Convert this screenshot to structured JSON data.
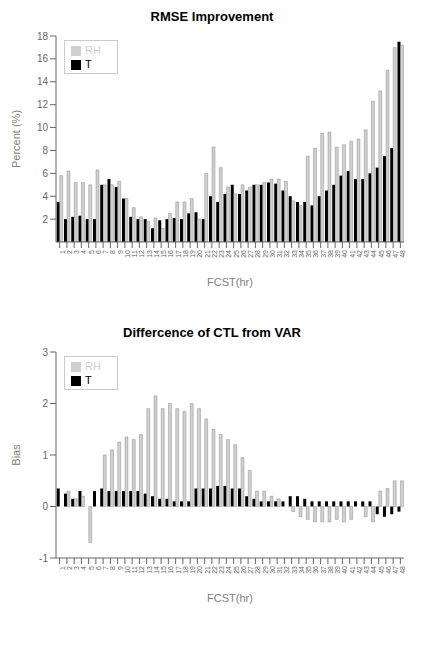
{
  "chart_data": [
    {
      "type": "bar",
      "title": "RMSE Improvement",
      "x_label": "FCST(hr)",
      "y_label": "Percent (%)",
      "categories": [
        "1",
        "2",
        "3",
        "4",
        "5",
        "6",
        "7",
        "8",
        "9",
        "10",
        "11",
        "12",
        "13",
        "14",
        "15",
        "16",
        "17",
        "18",
        "19",
        "20",
        "21",
        "22",
        "23",
        "24",
        "25",
        "26",
        "27",
        "28",
        "29",
        "30",
        "31",
        "32",
        "33",
        "34",
        "35",
        "36",
        "37",
        "38",
        "39",
        "40",
        "41",
        "42",
        "43",
        "44",
        "45",
        "46",
        "47",
        "48"
      ],
      "series": [
        {
          "name": "T",
          "color": "#000000",
          "values": [
            3.5,
            2.0,
            2.2,
            2.3,
            2.0,
            2.0,
            5.0,
            5.5,
            4.8,
            3.8,
            2.2,
            2.0,
            2.0,
            1.2,
            1.9,
            2.0,
            2.1,
            2.0,
            2.5,
            2.6,
            2.0,
            4.0,
            3.5,
            4.2,
            5.0,
            4.2,
            4.5,
            5.0,
            5.0,
            5.2,
            5.1,
            4.5,
            4.0,
            3.5,
            3.5,
            3.2,
            4.0,
            4.5,
            5.0,
            5.8,
            6.2,
            5.5,
            5.5,
            6.0,
            6.5,
            7.5,
            8.2,
            17.5
          ]
        },
        {
          "name": "RH",
          "color": "#d0d0d0",
          "values": [
            5.8,
            6.2,
            5.2,
            5.2,
            5.0,
            6.3,
            5.0,
            5.0,
            5.3,
            3.8,
            3.0,
            2.2,
            1.8,
            2.1,
            1.2,
            2.5,
            3.5,
            3.5,
            3.8,
            2.0,
            6.0,
            8.3,
            6.5,
            4.8,
            4.2,
            5.0,
            4.8,
            5.0,
            5.2,
            5.5,
            5.5,
            5.3,
            3.6,
            3.2,
            7.5,
            8.2,
            9.5,
            9.6,
            8.3,
            8.5,
            8.8,
            9.0,
            9.8,
            12.3,
            13.2,
            15.0,
            17.0,
            17.2
          ]
        }
      ],
      "ylim": [
        0,
        18
      ],
      "yticks": [
        2,
        4,
        6,
        8,
        10,
        12,
        14,
        16,
        18
      ],
      "grid": false,
      "legend": "upper left"
    },
    {
      "type": "bar",
      "title": "Differcence of CTL from VAR",
      "x_label": "FCST(hr)",
      "y_label": "Bias",
      "categories": [
        "1",
        "2",
        "3",
        "4",
        "5",
        "6",
        "7",
        "8",
        "9",
        "10",
        "11",
        "12",
        "13",
        "14",
        "15",
        "16",
        "17",
        "18",
        "19",
        "20",
        "21",
        "22",
        "23",
        "24",
        "25",
        "26",
        "27",
        "28",
        "29",
        "30",
        "31",
        "32",
        "33",
        "34",
        "35",
        "36",
        "37",
        "38",
        "39",
        "40",
        "41",
        "42",
        "43",
        "44",
        "45",
        "46",
        "47",
        "48"
      ],
      "series": [
        {
          "name": "T",
          "color": "#000000",
          "values": [
            0.35,
            0.25,
            0.15,
            0.3,
            0.0,
            0.3,
            0.35,
            0.3,
            0.3,
            0.3,
            0.3,
            0.3,
            0.25,
            0.2,
            0.15,
            0.15,
            0.1,
            0.1,
            0.1,
            0.35,
            0.35,
            0.35,
            0.4,
            0.4,
            0.35,
            0.35,
            0.2,
            0.15,
            0.1,
            0.1,
            0.1,
            0.1,
            0.2,
            0.2,
            0.15,
            0.1,
            0.1,
            0.1,
            0.1,
            0.1,
            0.1,
            0.1,
            0.1,
            0.1,
            -0.15,
            -0.2,
            -0.15,
            -0.1
          ]
        },
        {
          "name": "RH",
          "color": "#d0d0d0",
          "values": [
            0.0,
            0.3,
            0.15,
            0.2,
            -0.7,
            0.0,
            1.0,
            1.1,
            1.25,
            1.35,
            1.3,
            1.4,
            1.9,
            2.15,
            1.9,
            2.0,
            1.9,
            1.85,
            2.0,
            1.9,
            1.7,
            1.5,
            1.4,
            1.3,
            1.2,
            0.95,
            0.7,
            0.3,
            0.3,
            0.2,
            0.15,
            0.0,
            -0.1,
            -0.2,
            -0.25,
            -0.3,
            -0.3,
            -0.3,
            -0.25,
            -0.3,
            -0.25,
            0.0,
            -0.2,
            -0.3,
            0.3,
            0.35,
            0.5,
            0.5
          ]
        }
      ],
      "ylim": [
        -1,
        3
      ],
      "yticks": [
        -1,
        0,
        1,
        2,
        3
      ],
      "grid": false,
      "legend": "upper left"
    }
  ]
}
